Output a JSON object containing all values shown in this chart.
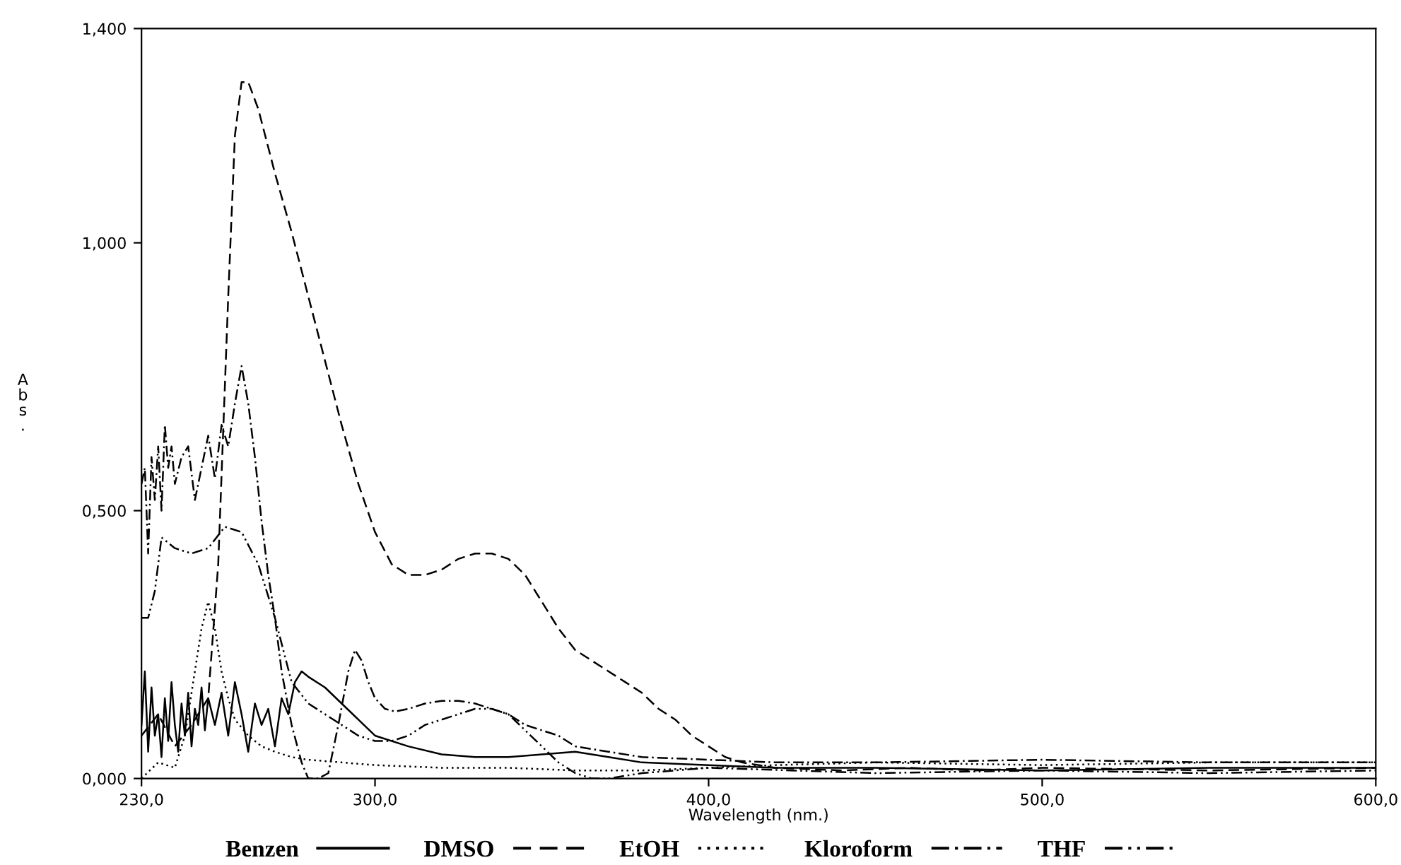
{
  "chart_data": {
    "type": "line",
    "xlabel": "Wavelength (nm.)",
    "ylabel": "Abs.",
    "xlim": [
      230,
      600
    ],
    "xticks": [
      {
        "value": 230,
        "label": "230,0"
      },
      {
        "value": 300,
        "label": "300,0"
      },
      {
        "value": 400,
        "label": "400,0"
      },
      {
        "value": 500,
        "label": "500,0"
      },
      {
        "value": 600,
        "label": "600,0"
      }
    ],
    "ylim": [
      0,
      1.4
    ],
    "yticks": [
      {
        "value": 0,
        "label": "0,000"
      },
      {
        "value": 0.5,
        "label": "0,500"
      },
      {
        "value": 1.0,
        "label": "1,000"
      },
      {
        "value": 1.4,
        "label": "1,400"
      }
    ],
    "grid": false,
    "legend": "bottom",
    "marker": "none",
    "series": [
      {
        "name": "Benzen",
        "color": "#000000",
        "line_style": "solid",
        "x": [
          230,
          231,
          232,
          233,
          234,
          235,
          236,
          237,
          238,
          239,
          240,
          241,
          242,
          243,
          244,
          245,
          246,
          247,
          248,
          249,
          250,
          252,
          254,
          256,
          258,
          260,
          262,
          264,
          266,
          268,
          270,
          272,
          274,
          276,
          278,
          280,
          285,
          290,
          295,
          300,
          310,
          320,
          330,
          340,
          350,
          360,
          370,
          380,
          400,
          420,
          450,
          500,
          550,
          600
        ],
        "values": [
          0.1,
          0.2,
          0.05,
          0.17,
          0.08,
          0.12,
          0.04,
          0.15,
          0.07,
          0.18,
          0.1,
          0.05,
          0.14,
          0.08,
          0.16,
          0.06,
          0.13,
          0.1,
          0.17,
          0.09,
          0.15,
          0.1,
          0.16,
          0.08,
          0.18,
          0.12,
          0.05,
          0.14,
          0.1,
          0.13,
          0.06,
          0.15,
          0.12,
          0.18,
          0.2,
          0.19,
          0.17,
          0.14,
          0.11,
          0.08,
          0.06,
          0.045,
          0.04,
          0.04,
          0.045,
          0.05,
          0.04,
          0.03,
          0.025,
          0.02,
          0.02,
          0.015,
          0.02,
          0.02
        ]
      },
      {
        "name": "DMSO",
        "color": "#000000",
        "line_style": "dashed",
        "x": [
          230,
          235,
          240,
          245,
          250,
          253,
          256,
          258,
          260,
          262,
          265,
          270,
          275,
          280,
          285,
          290,
          295,
          300,
          305,
          310,
          315,
          320,
          325,
          330,
          335,
          340,
          345,
          350,
          355,
          360,
          365,
          370,
          375,
          380,
          385,
          390,
          395,
          400,
          405,
          410,
          420,
          440,
          460,
          480,
          500,
          550,
          600
        ],
        "values": [
          0.08,
          0.12,
          0.06,
          0.1,
          0.15,
          0.4,
          0.9,
          1.2,
          1.3,
          1.3,
          1.25,
          1.13,
          1.02,
          0.9,
          0.78,
          0.66,
          0.55,
          0.46,
          0.4,
          0.38,
          0.38,
          0.39,
          0.41,
          0.42,
          0.42,
          0.41,
          0.38,
          0.33,
          0.28,
          0.24,
          0.22,
          0.2,
          0.18,
          0.16,
          0.13,
          0.11,
          0.08,
          0.06,
          0.04,
          0.03,
          0.02,
          0.015,
          0.02,
          0.015,
          0.02,
          0.015,
          0.02
        ]
      },
      {
        "name": "EtOH",
        "color": "#000000",
        "line_style": "dotted",
        "x": [
          230,
          235,
          240,
          243,
          246,
          248,
          250,
          252,
          254,
          256,
          258,
          262,
          266,
          270,
          275,
          280,
          290,
          300,
          320,
          340,
          360,
          380,
          400,
          420,
          450,
          500,
          550,
          600
        ],
        "values": [
          0.0,
          0.03,
          0.02,
          0.08,
          0.2,
          0.28,
          0.33,
          0.28,
          0.2,
          0.15,
          0.11,
          0.08,
          0.06,
          0.05,
          0.04,
          0.035,
          0.03,
          0.025,
          0.02,
          0.02,
          0.015,
          0.015,
          0.02,
          0.025,
          0.03,
          0.025,
          0.03,
          0.03
        ]
      },
      {
        "name": "Kloroform",
        "color": "#000000",
        "line_style": "dashdot",
        "x": [
          230,
          231,
          232,
          233,
          234,
          235,
          236,
          237,
          238,
          239,
          240,
          242,
          244,
          246,
          248,
          250,
          252,
          254,
          256,
          258,
          260,
          262,
          264,
          266,
          268,
          270,
          272,
          275,
          278,
          280,
          283,
          286,
          289,
          292,
          294,
          296,
          298,
          300,
          303,
          306,
          310,
          315,
          320,
          325,
          330,
          335,
          340,
          345,
          350,
          355,
          360,
          370,
          380,
          400,
          420,
          450,
          500,
          550,
          600
        ],
        "values": [
          0.55,
          0.58,
          0.42,
          0.6,
          0.52,
          0.62,
          0.5,
          0.66,
          0.58,
          0.62,
          0.55,
          0.6,
          0.62,
          0.52,
          0.58,
          0.64,
          0.56,
          0.66,
          0.62,
          0.7,
          0.77,
          0.7,
          0.6,
          0.48,
          0.38,
          0.3,
          0.2,
          0.1,
          0.03,
          0.0,
          0.0,
          0.01,
          0.1,
          0.2,
          0.24,
          0.22,
          0.18,
          0.15,
          0.13,
          0.125,
          0.13,
          0.14,
          0.145,
          0.145,
          0.14,
          0.13,
          0.12,
          0.1,
          0.09,
          0.08,
          0.06,
          0.05,
          0.04,
          0.035,
          0.03,
          0.03,
          0.035,
          0.03,
          0.03
        ]
      },
      {
        "name": "THF",
        "color": "#000000",
        "line_style": "dashdotdot",
        "x": [
          230,
          232,
          234,
          236,
          238,
          240,
          245,
          250,
          255,
          260,
          265,
          270,
          275,
          280,
          285,
          290,
          295,
          300,
          305,
          310,
          315,
          320,
          325,
          330,
          335,
          340,
          345,
          350,
          355,
          360,
          365,
          370,
          380,
          400,
          450,
          500,
          550,
          600
        ],
        "values": [
          0.3,
          0.3,
          0.35,
          0.45,
          0.44,
          0.43,
          0.42,
          0.43,
          0.47,
          0.46,
          0.4,
          0.3,
          0.18,
          0.14,
          0.12,
          0.1,
          0.08,
          0.07,
          0.07,
          0.08,
          0.1,
          0.11,
          0.12,
          0.13,
          0.13,
          0.12,
          0.09,
          0.06,
          0.03,
          0.01,
          0.0,
          0.0,
          0.01,
          0.02,
          0.01,
          0.015,
          0.01,
          0.015
        ]
      }
    ]
  }
}
